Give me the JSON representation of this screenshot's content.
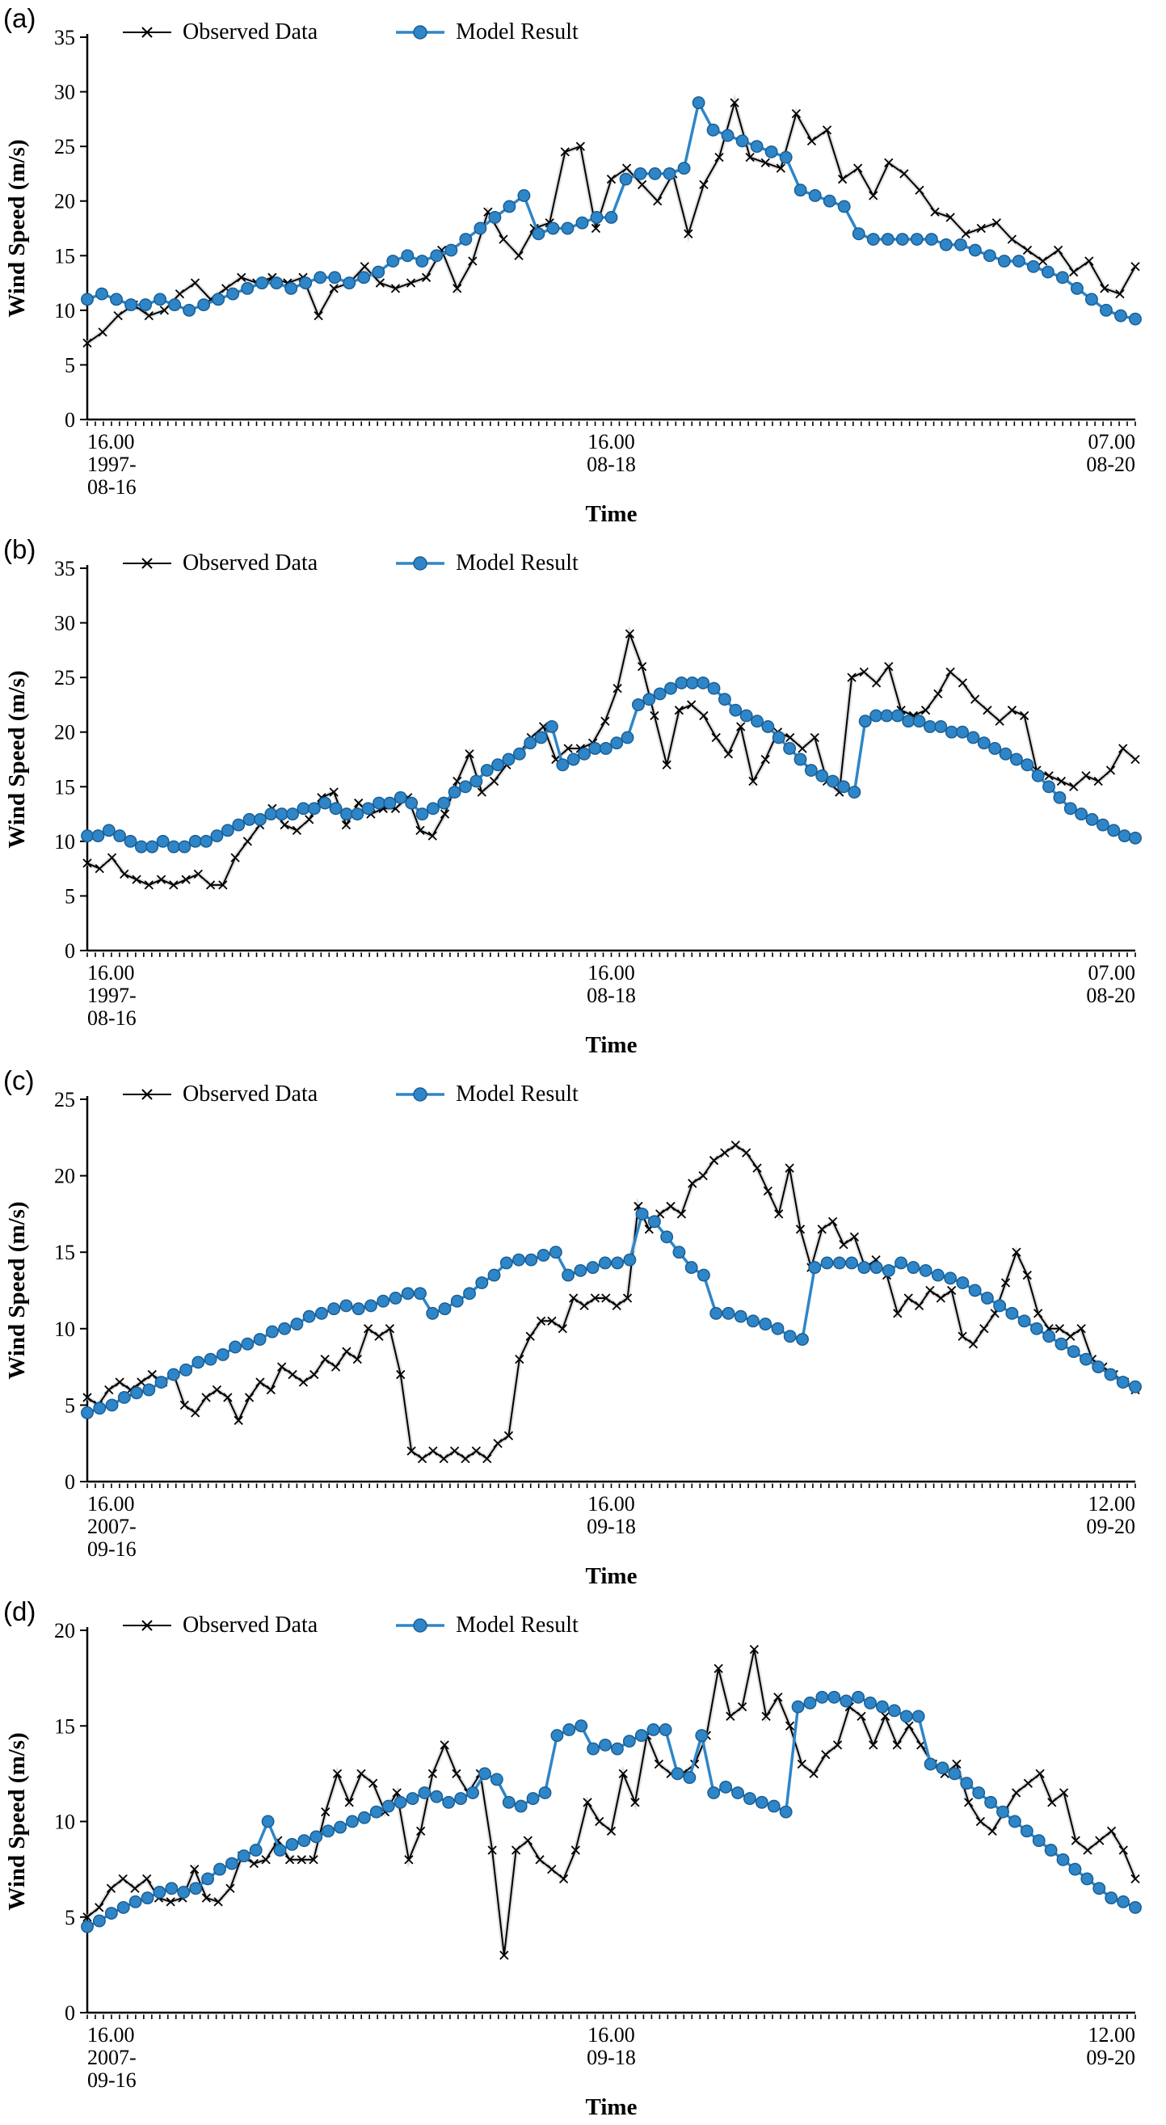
{
  "chart_data": [
    {
      "type": "line",
      "panel_label": "(a)",
      "ylabel": "Wind Speed (m/s)",
      "xlabel": "Time",
      "ylim": [
        0,
        35
      ],
      "ytick_step": 5,
      "grid": false,
      "legend_position": "top-inside",
      "x_ticks": [
        {
          "pos": 0,
          "anchor": "start",
          "lines": [
            "16.00",
            "1997-",
            "08-16"
          ]
        },
        {
          "pos": 0.5,
          "anchor": "middle",
          "lines": [
            "16.00",
            "08-18"
          ]
        },
        {
          "pos": 1,
          "anchor": "end",
          "lines": [
            "07.00",
            "08-20"
          ]
        }
      ],
      "series": [
        {
          "name": "Observed Data",
          "marker": "x",
          "color": "#000000",
          "halo": "#c9c9c9",
          "values": [
            7,
            8,
            9.5,
            10.5,
            9.5,
            10,
            11.5,
            12.5,
            11,
            12,
            13,
            12.5,
            13,
            12.5,
            13,
            9.5,
            12,
            12.5,
            14,
            12.5,
            12,
            12.5,
            13,
            15.5,
            12,
            14.5,
            19,
            16.5,
            15,
            17.5,
            18,
            24.5,
            25,
            17.5,
            22,
            23,
            21.5,
            20,
            22.5,
            17,
            21.5,
            24,
            29,
            24,
            23.5,
            23,
            28,
            25.5,
            26.5,
            22,
            23,
            20.5,
            23.5,
            22.5,
            21,
            19,
            18.5,
            17,
            17.5,
            18,
            16.5,
            15.5,
            14.5,
            15.5,
            13.5,
            14.5,
            12,
            11.5,
            14
          ]
        },
        {
          "name": "Model Result",
          "marker": "circle",
          "color": "#2e86c8",
          "stroke": "#1b5e93",
          "values": [
            11,
            11.5,
            11,
            10.5,
            10.5,
            11,
            10.5,
            10,
            10.5,
            11,
            11.5,
            12,
            12.5,
            12.5,
            12,
            12.5,
            13,
            13,
            12.5,
            13,
            13.5,
            14.5,
            15,
            14.5,
            15,
            15.5,
            16.5,
            17.5,
            18.5,
            19.5,
            20.5,
            17,
            17.5,
            17.5,
            18,
            18.5,
            18.5,
            22,
            22.5,
            22.5,
            22.5,
            23,
            29,
            26.5,
            26,
            25.5,
            25,
            24.5,
            24,
            21,
            20.5,
            20,
            19.5,
            17,
            16.5,
            16.5,
            16.5,
            16.5,
            16.5,
            16,
            16,
            15.5,
            15,
            14.5,
            14.5,
            14,
            13.5,
            13,
            12,
            11,
            10,
            9.5,
            9.2
          ]
        }
      ]
    },
    {
      "type": "line",
      "panel_label": "(b)",
      "ylabel": "Wind Speed (m/s)",
      "xlabel": "Time",
      "ylim": [
        0,
        35
      ],
      "ytick_step": 5,
      "grid": false,
      "legend_position": "top-inside",
      "x_ticks": [
        {
          "pos": 0,
          "anchor": "start",
          "lines": [
            "16.00",
            "1997-",
            "08-16"
          ]
        },
        {
          "pos": 0.5,
          "anchor": "middle",
          "lines": [
            "16.00",
            "08-18"
          ]
        },
        {
          "pos": 1,
          "anchor": "end",
          "lines": [
            "07.00",
            "08-20"
          ]
        }
      ],
      "series": [
        {
          "name": "Observed Data",
          "marker": "x",
          "color": "#000000",
          "halo": "#c9c9c9",
          "values": [
            8,
            7.5,
            8.5,
            7,
            6.5,
            6,
            6.5,
            6,
            6.5,
            7,
            6,
            6,
            8.5,
            10,
            11.5,
            13,
            11.5,
            11,
            12,
            14,
            14.5,
            11.5,
            13.5,
            12.5,
            13,
            13,
            14,
            11,
            10.5,
            12.5,
            15.5,
            18,
            14.5,
            15.5,
            17,
            18,
            19.5,
            20.5,
            17.5,
            18.5,
            18.5,
            19,
            21,
            24,
            29,
            26,
            21.5,
            17,
            22,
            22.5,
            21.5,
            19.5,
            18,
            20.5,
            15.5,
            17.5,
            20,
            19.5,
            18.5,
            19.5,
            15.5,
            14.5,
            25,
            25.5,
            24.5,
            26,
            22,
            21.5,
            22,
            23.5,
            25.5,
            24.5,
            23,
            22,
            21,
            22,
            21.5,
            16.5,
            16,
            15.5,
            15,
            16,
            15.5,
            16.5,
            18.5,
            17.5
          ]
        },
        {
          "name": "Model Result",
          "marker": "circle",
          "color": "#2e86c8",
          "stroke": "#1b5e93",
          "values": [
            10.5,
            10.5,
            11,
            10.5,
            10,
            9.5,
            9.5,
            10,
            9.5,
            9.5,
            10,
            10,
            10.5,
            11,
            11.5,
            12,
            12,
            12.5,
            12.5,
            12.5,
            13,
            13,
            13.5,
            13,
            12.5,
            12.5,
            13,
            13.5,
            13.5,
            14,
            13.5,
            12.5,
            13,
            13.5,
            14.5,
            15,
            15.5,
            16.5,
            17,
            17.5,
            18,
            19,
            19.5,
            20.5,
            17,
            17.5,
            18,
            18.5,
            18.5,
            19,
            19.5,
            22.5,
            23,
            23.5,
            24,
            24.5,
            24.5,
            24.5,
            24,
            23,
            22,
            21.5,
            21,
            20.5,
            19.5,
            18.5,
            17.5,
            16.5,
            16,
            15.5,
            15,
            14.5,
            21,
            21.5,
            21.5,
            21.5,
            21,
            21,
            20.5,
            20.5,
            20,
            20,
            19.5,
            19,
            18.5,
            18,
            17.5,
            17,
            16,
            15,
            14,
            13,
            12.5,
            12,
            11.5,
            11,
            10.5,
            10.3
          ]
        }
      ]
    },
    {
      "type": "line",
      "panel_label": "(c)",
      "ylabel": "Wind Speed (m/s)",
      "xlabel": "Time",
      "ylim": [
        0,
        25
      ],
      "ytick_step": 5,
      "grid": false,
      "legend_position": "top-inside",
      "x_ticks": [
        {
          "pos": 0,
          "anchor": "start",
          "lines": [
            "16.00",
            "2007-",
            "09-16"
          ]
        },
        {
          "pos": 0.5,
          "anchor": "middle",
          "lines": [
            "16.00",
            "09-18"
          ]
        },
        {
          "pos": 1,
          "anchor": "end",
          "lines": [
            "12.00",
            "09-20"
          ]
        }
      ],
      "series": [
        {
          "name": "Observed Data",
          "marker": "x",
          "color": "#000000",
          "halo": "#c9c9c9",
          "values": [
            5.5,
            5,
            6,
            6.5,
            6,
            6.5,
            7,
            6.5,
            7,
            5,
            4.5,
            5.5,
            6,
            5.5,
            4,
            5.5,
            6.5,
            6,
            7.5,
            7,
            6.5,
            7,
            8,
            7.5,
            8.5,
            8,
            10,
            9.5,
            10,
            7,
            2,
            1.5,
            2,
            1.5,
            2,
            1.5,
            2,
            1.5,
            2.5,
            3,
            8,
            9.5,
            10.5,
            10.5,
            10,
            12,
            11.5,
            12,
            12,
            11.5,
            12,
            18,
            16.5,
            17.5,
            18,
            17.5,
            19.5,
            20,
            21,
            21.5,
            22,
            21.5,
            20.5,
            19,
            17.5,
            20.5,
            16.5,
            14,
            16.5,
            17,
            15.5,
            16,
            14,
            14.5,
            13.5,
            11,
            12,
            11.5,
            12.5,
            12,
            12.5,
            9.5,
            9,
            10,
            11,
            13,
            15,
            13.5,
            11,
            10,
            10,
            9.5,
            10,
            8,
            7.5,
            7,
            6.5,
            6
          ]
        },
        {
          "name": "Model Result",
          "marker": "circle",
          "color": "#2e86c8",
          "stroke": "#1b5e93",
          "values": [
            4.5,
            4.8,
            5,
            5.5,
            5.8,
            6,
            6.5,
            7,
            7.3,
            7.8,
            8,
            8.3,
            8.8,
            9,
            9.3,
            9.8,
            10,
            10.3,
            10.8,
            11,
            11.3,
            11.5,
            11.3,
            11.5,
            11.8,
            12,
            12.3,
            12.3,
            11,
            11.3,
            11.8,
            12.3,
            13,
            13.5,
            14.3,
            14.5,
            14.5,
            14.8,
            15,
            13.5,
            13.8,
            14,
            14.3,
            14.3,
            14.5,
            17.5,
            17,
            16,
            15,
            14,
            13.5,
            11,
            11,
            10.8,
            10.5,
            10.3,
            10,
            9.5,
            9.3,
            14,
            14.3,
            14.3,
            14.3,
            14,
            14,
            13.8,
            14.3,
            14,
            13.8,
            13.5,
            13.3,
            13,
            12.5,
            12,
            11.5,
            11,
            10.5,
            10,
            9.5,
            9,
            8.5,
            8,
            7.5,
            7,
            6.5,
            6.2
          ]
        }
      ]
    },
    {
      "type": "line",
      "panel_label": "(d)",
      "ylabel": "Wind Speed (m/s)",
      "xlabel": "Time",
      "ylim": [
        0,
        20
      ],
      "ytick_step": 5,
      "grid": false,
      "legend_position": "top-inside",
      "x_ticks": [
        {
          "pos": 0,
          "anchor": "start",
          "lines": [
            "16.00",
            "2007-",
            "09-16"
          ]
        },
        {
          "pos": 0.5,
          "anchor": "middle",
          "lines": [
            "16.00",
            "09-18"
          ]
        },
        {
          "pos": 1,
          "anchor": "end",
          "lines": [
            "12.00",
            "09-20"
          ]
        }
      ],
      "series": [
        {
          "name": "Observed Data",
          "marker": "x",
          "color": "#000000",
          "halo": "#c9c9c9",
          "values": [
            5,
            5.5,
            6.5,
            7,
            6.5,
            7,
            6,
            5.8,
            6,
            7.5,
            6,
            5.8,
            6.5,
            8.2,
            7.8,
            8,
            9,
            8,
            8,
            8,
            10.5,
            12.5,
            11,
            12.5,
            12,
            10.5,
            11.5,
            8,
            9.5,
            12.5,
            14,
            12.5,
            11.5,
            12.5,
            8.5,
            3,
            8.5,
            9,
            8,
            7.5,
            7,
            8.5,
            11,
            10,
            9.5,
            12.5,
            11,
            14.5,
            13,
            12.5,
            12.5,
            13,
            14.5,
            18,
            15.5,
            16,
            19,
            15.5,
            16.5,
            15,
            13,
            12.5,
            13.5,
            14,
            16,
            15.5,
            14,
            15.5,
            14,
            15,
            14,
            13,
            12.5,
            13,
            11,
            10,
            9.5,
            10.5,
            11.5,
            12,
            12.5,
            11,
            11.5,
            9,
            8.5,
            9,
            9.5,
            8.5,
            7
          ]
        },
        {
          "name": "Model Result",
          "marker": "circle",
          "color": "#2e86c8",
          "stroke": "#1b5e93",
          "values": [
            4.5,
            4.8,
            5.2,
            5.5,
            5.8,
            6,
            6.3,
            6.5,
            6.3,
            6.5,
            7,
            7.5,
            7.8,
            8.2,
            8.5,
            10,
            8.5,
            8.8,
            9,
            9.2,
            9.5,
            9.7,
            10,
            10.2,
            10.5,
            10.8,
            11,
            11.2,
            11.5,
            11.3,
            11,
            11.2,
            11.5,
            12.5,
            12.2,
            11,
            10.8,
            11.2,
            11.5,
            14.5,
            14.8,
            15,
            13.8,
            14,
            13.8,
            14.2,
            14.5,
            14.8,
            14.8,
            12.5,
            12.3,
            14.5,
            11.5,
            11.8,
            11.5,
            11.2,
            11,
            10.8,
            10.5,
            16,
            16.2,
            16.5,
            16.5,
            16.3,
            16.5,
            16.2,
            16,
            15.8,
            15.5,
            15.5,
            13,
            12.8,
            12.5,
            12,
            11.5,
            11,
            10.5,
            10,
            9.5,
            9,
            8.5,
            8,
            7.5,
            7,
            6.5,
            6,
            5.8,
            5.5
          ]
        }
      ]
    }
  ]
}
